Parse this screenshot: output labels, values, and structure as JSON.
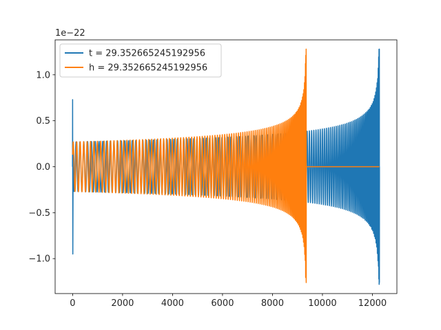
{
  "chart_data": {
    "type": "line",
    "title": "",
    "xlabel": "",
    "ylabel": "",
    "y_offset_text": "1e−22",
    "xlim": [
      -700,
      12980
    ],
    "ylim": [
      -1.38,
      1.38
    ],
    "x_ticks": [
      {
        "value": 0,
        "label": "0"
      },
      {
        "value": 2000,
        "label": "2000"
      },
      {
        "value": 4000,
        "label": "4000"
      },
      {
        "value": 6000,
        "label": "6000"
      },
      {
        "value": 8000,
        "label": "8000"
      },
      {
        "value": 10000,
        "label": "10000"
      },
      {
        "value": 12000,
        "label": "12000"
      }
    ],
    "y_ticks": [
      {
        "value": -1.0,
        "label": "−1.0"
      },
      {
        "value": -0.5,
        "label": "−0.5"
      },
      {
        "value": 0.0,
        "label": "0.0"
      },
      {
        "value": 0.5,
        "label": "0.5"
      },
      {
        "value": 1.0,
        "label": "1.0"
      }
    ],
    "grid": false,
    "legend_position": "top-left",
    "series": [
      {
        "name": "t = 29.352665245192956",
        "color": "#1f77b4",
        "x_start": 0,
        "x_end": 12280,
        "initial_spike": {
          "x": 0,
          "max": 0.73,
          "min": -0.95
        },
        "start_amplitude": 0.27,
        "peak": {
          "x": 12280,
          "max": 1.28,
          "min": -1.26
        }
      },
      {
        "name": "h = 29.352665245192956",
        "color": "#ff7f0e",
        "x_start": 0,
        "x_end": 12280,
        "signal_end": 9350,
        "start_amplitude": 0.27,
        "peak": {
          "x": 9350,
          "max": 1.28,
          "min": -1.26
        },
        "tail_value": 0.0
      }
    ]
  }
}
